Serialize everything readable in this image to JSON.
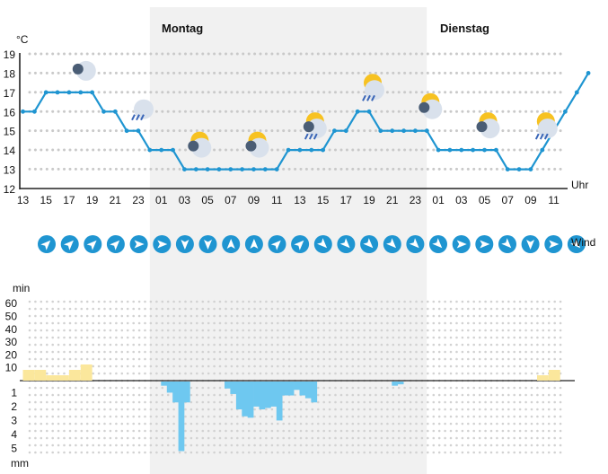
{
  "labels": {
    "day1": "Montag",
    "day2": "Dienstag",
    "temp_unit": "°C",
    "time_unit": "Uhr",
    "wind": "Wind",
    "sun_unit": "min",
    "rain_unit": "mm"
  },
  "colors": {
    "temp_line": "#1f95d1",
    "wind_circle": "#1f95d1",
    "sun_bar": "#fbe79c",
    "rain_bar": "#6ec8f0",
    "night_shade": "#f1f1f1",
    "sun_icon": "#f7c221",
    "moon_icon": "#4a5d75",
    "cloud_icon": "#d9e1ec",
    "rain_drop": "#3a66b8"
  },
  "chart_data": {
    "type": "line",
    "x_tick_labels": [
      "13",
      "15",
      "17",
      "19",
      "21",
      "23",
      "01",
      "03",
      "05",
      "07",
      "09",
      "11",
      "13",
      "15",
      "17",
      "19",
      "21",
      "23",
      "01",
      "03",
      "05",
      "07",
      "09",
      "11"
    ],
    "y_tick_labels": [
      "12",
      "13",
      "14",
      "15",
      "16",
      "17",
      "18",
      "19"
    ],
    "ylim": [
      12,
      19
    ],
    "night_periods": [
      [
        11,
        35
      ]
    ],
    "temperature": [
      16,
      16,
      17,
      17,
      17,
      17,
      17,
      16,
      16,
      15,
      15,
      14,
      14,
      14,
      13,
      13,
      13,
      13,
      13,
      13,
      13,
      13,
      13,
      14,
      14,
      14,
      14,
      15,
      15,
      16,
      16,
      15,
      15,
      15,
      15,
      15,
      14,
      14,
      14,
      14,
      14,
      14,
      13,
      13,
      13,
      14,
      15,
      16,
      17,
      18
    ],
    "weather_icons": [
      {
        "hour": 5,
        "icon": "moon-cloud-icon"
      },
      {
        "hour": 10,
        "icon": "cloud-rain-icon"
      },
      {
        "hour": 15,
        "icon": "sun-moon-cloud-icon"
      },
      {
        "hour": 20,
        "icon": "sun-moon-cloud-icon"
      },
      {
        "hour": 25,
        "icon": "sun-moon-rain-icon"
      },
      {
        "hour": 30,
        "icon": "sun-rain-icon"
      },
      {
        "hour": 35,
        "icon": "sun-moon-cloud-icon"
      },
      {
        "hour": 40,
        "icon": "sun-moon-cloud-icon"
      },
      {
        "hour": 45,
        "icon": "sun-rain-icon"
      }
    ],
    "wind_directions_deg": [
      45,
      45,
      45,
      45,
      90,
      90,
      180,
      180,
      0,
      0,
      45,
      45,
      135,
      135,
      135,
      135,
      135,
      135,
      90,
      90,
      135,
      180,
      90,
      135
    ],
    "sunshine_ticks": [
      "60",
      "50",
      "40",
      "30",
      "20",
      "10"
    ],
    "sunshine_minutes": [
      10,
      10,
      5,
      5,
      10,
      15,
      0,
      0,
      0,
      0,
      0,
      0,
      0,
      0,
      0,
      0,
      0,
      0,
      0,
      0,
      0,
      0,
      0,
      5,
      10
    ],
    "rain_ticks": [
      "1",
      "2",
      "3",
      "4",
      "5"
    ],
    "rain_mm": [
      0,
      0,
      0,
      0,
      0,
      0,
      0,
      0,
      0,
      0.3,
      0.8,
      1.5,
      5.0,
      1.5,
      0,
      0,
      0,
      0,
      0,
      0,
      0.5,
      0.9,
      2.0,
      2.5,
      2.6,
      1.8,
      2.0,
      1.9,
      1.8,
      2.8,
      1.0,
      1.0,
      0.6,
      1.0,
      1.2,
      1.5,
      0,
      0,
      0,
      0,
      0,
      0,
      0,
      0,
      0,
      0,
      0,
      0,
      0,
      0.3,
      0.2,
      0,
      0,
      0,
      0,
      0,
      0,
      0,
      0,
      0,
      0,
      0,
      0,
      0,
      0,
      0,
      0,
      0,
      0,
      0
    ]
  }
}
